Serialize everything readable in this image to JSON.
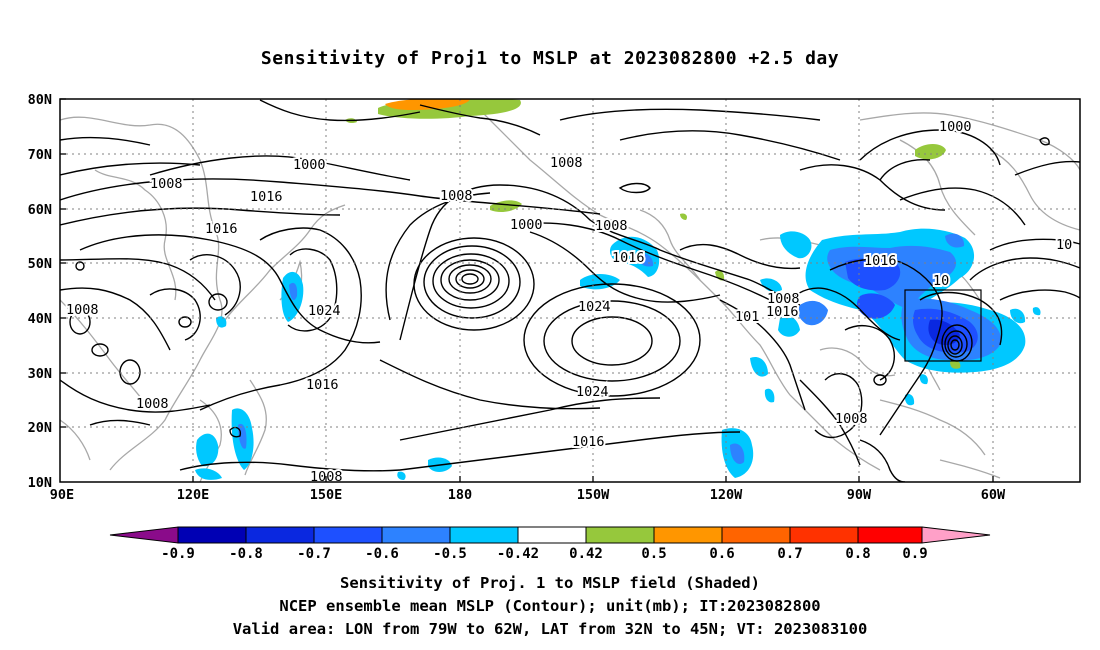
{
  "title": "Sensitivity of Proj1 to MSLP at 2023082800 +2.5 day",
  "axes": {
    "lat_labels": [
      "80N",
      "70N",
      "60N",
      "50N",
      "40N",
      "30N",
      "20N",
      "10N"
    ],
    "lon_labels": [
      "90E",
      "120E",
      "150E",
      "180",
      "150W",
      "120W",
      "90W",
      "60W"
    ]
  },
  "contour_labels": [
    {
      "text": "1000"
    },
    {
      "text": "1008"
    },
    {
      "text": "1016"
    },
    {
      "text": "1016"
    },
    {
      "text": "1008"
    },
    {
      "text": "1008"
    },
    {
      "text": "1000"
    },
    {
      "text": "1008"
    },
    {
      "text": "1016"
    },
    {
      "text": "1024"
    },
    {
      "text": "1008"
    },
    {
      "text": "1016"
    },
    {
      "text": "1024"
    },
    {
      "text": "1024"
    },
    {
      "text": "1008"
    },
    {
      "text": "1016"
    },
    {
      "text": "1008"
    },
    {
      "text": "1016"
    },
    {
      "text": "1008"
    },
    {
      "text": "1016"
    },
    {
      "text": "101"
    },
    {
      "text": "1008"
    },
    {
      "text": "1000"
    },
    {
      "text": "10"
    }
  ],
  "colorbar": {
    "labels": [
      "-0.9",
      "-0.8",
      "-0.7",
      "-0.6",
      "-0.5",
      "-0.42",
      "0.42",
      "0.5",
      "0.6",
      "0.7",
      "0.8",
      "0.9"
    ],
    "colors": [
      "#8a0b8a",
      "#0000b4",
      "#0a28e0",
      "#1e50ff",
      "#2d82ff",
      "#00c8ff",
      "#ffffff",
      "#96c83c",
      "#ff9600",
      "#ff6400",
      "#ff3200",
      "#ff0000",
      "#ffa0c8"
    ]
  },
  "captions": {
    "line1": "Sensitivity of Proj. 1 to MSLP field (Shaded)",
    "line2": "NCEP ensemble mean MSLP (Contour); unit(mb); IT:2023082800",
    "line3": "Valid area: LON from 79W to 62W, LAT from 32N to 45N; VT: 2023083100"
  }
}
